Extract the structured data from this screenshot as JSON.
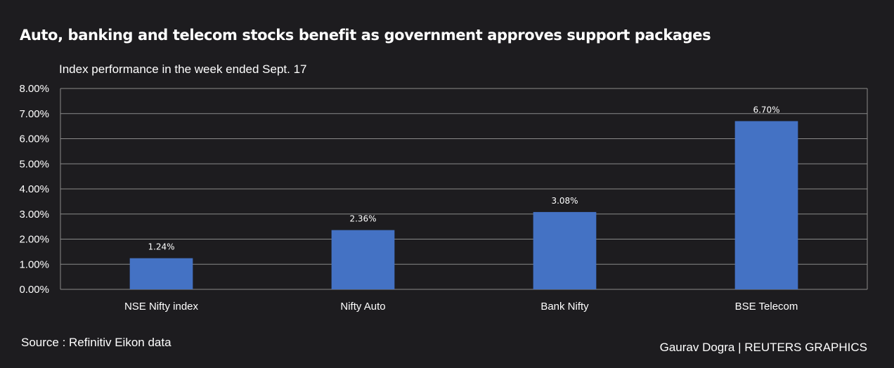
{
  "header": {
    "title": "Auto, banking and telecom stocks benefit as government approves support packages",
    "subtitle": "Index performance in the week ended Sept. 17"
  },
  "footer": {
    "source": "Source : Refinitiv Eikon data",
    "credit": "Gaurav Dogra | REUTERS GRAPHICS"
  },
  "colors": {
    "background": "#1d1c1f",
    "bar": "#4472c4",
    "gridline": "#8a8a8a",
    "text": "#ffffff"
  },
  "chart_data": {
    "type": "bar",
    "title": "Auto, banking and telecom stocks benefit as government approves support packages",
    "subtitle": "Index performance in the week ended Sept. 17",
    "categories": [
      "NSE Nifty index",
      "Nifty Auto",
      "Bank Nifty",
      "BSE Telecom"
    ],
    "values": [
      1.24,
      2.36,
      3.08,
      6.7
    ],
    "data_labels": [
      "1.24%",
      "2.36%",
      "3.08%",
      "6.70%"
    ],
    "ylim": [
      0,
      8
    ],
    "yticks": [
      0,
      1,
      2,
      3,
      4,
      5,
      6,
      7,
      8
    ],
    "ytick_labels": [
      "0.00%",
      "1.00%",
      "2.00%",
      "3.00%",
      "4.00%",
      "5.00%",
      "6.00%",
      "7.00%",
      "8.00%"
    ],
    "grid": true,
    "legend": "none"
  }
}
